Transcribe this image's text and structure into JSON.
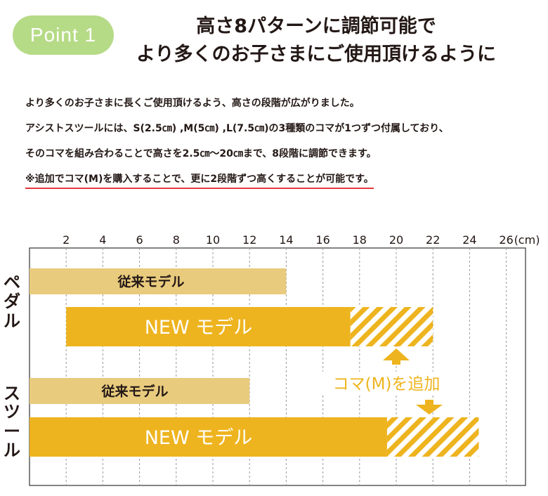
{
  "badge": {
    "label": "Point 1"
  },
  "headline": {
    "line1": "高さ8パターンに調節可能で",
    "line2": "より多くのお子さまにご使用頂けるように"
  },
  "description": {
    "line1": "より多くのお子さまに長くご使用頂けるよう、高さの段階が広がりました。",
    "line2": "アシストスツールには、S(2.5㎝) ,M(5㎝) ,L(7.5㎝)の3種類のコマが1つずつ付属しており、",
    "line3": "そのコマを組み合わることで高さを2.5㎝～20㎝まで、8段階に調節できます。",
    "note": "※追加でコマ(M)を購入することで、更に2段階ずつ高くすることが可能です。"
  },
  "colors": {
    "old_model": "#e9cb7e",
    "new_model": "#eeb41f",
    "annotation": "#eeb41f",
    "grid": "#999999",
    "badge": "#b6db87",
    "note_underline": "#e6383f"
  },
  "chart_data": {
    "type": "bar",
    "orientation": "horizontal",
    "unit": "(cm)",
    "x_ticks": [
      2,
      4,
      6,
      8,
      10,
      12,
      14,
      16,
      18,
      20,
      22,
      24,
      26
    ],
    "xlim": [
      0,
      28
    ],
    "grid": true,
    "groups": [
      {
        "label": "ペダル",
        "bars": [
          {
            "label": "従来モデル",
            "start": 0,
            "end": 14,
            "series": "old"
          },
          {
            "label": "NEW モデル",
            "start": 2,
            "end": 17.5,
            "ext_end": 22,
            "series": "new"
          }
        ]
      },
      {
        "label": "スツール",
        "bars": [
          {
            "label": "従来モデル",
            "start": 0,
            "end": 12,
            "series": "old"
          },
          {
            "label": "NEW モデル",
            "start": 0,
            "end": 19.5,
            "ext_end": 24.5,
            "series": "new"
          }
        ]
      }
    ],
    "annotation": "コマ(M)を追加"
  }
}
